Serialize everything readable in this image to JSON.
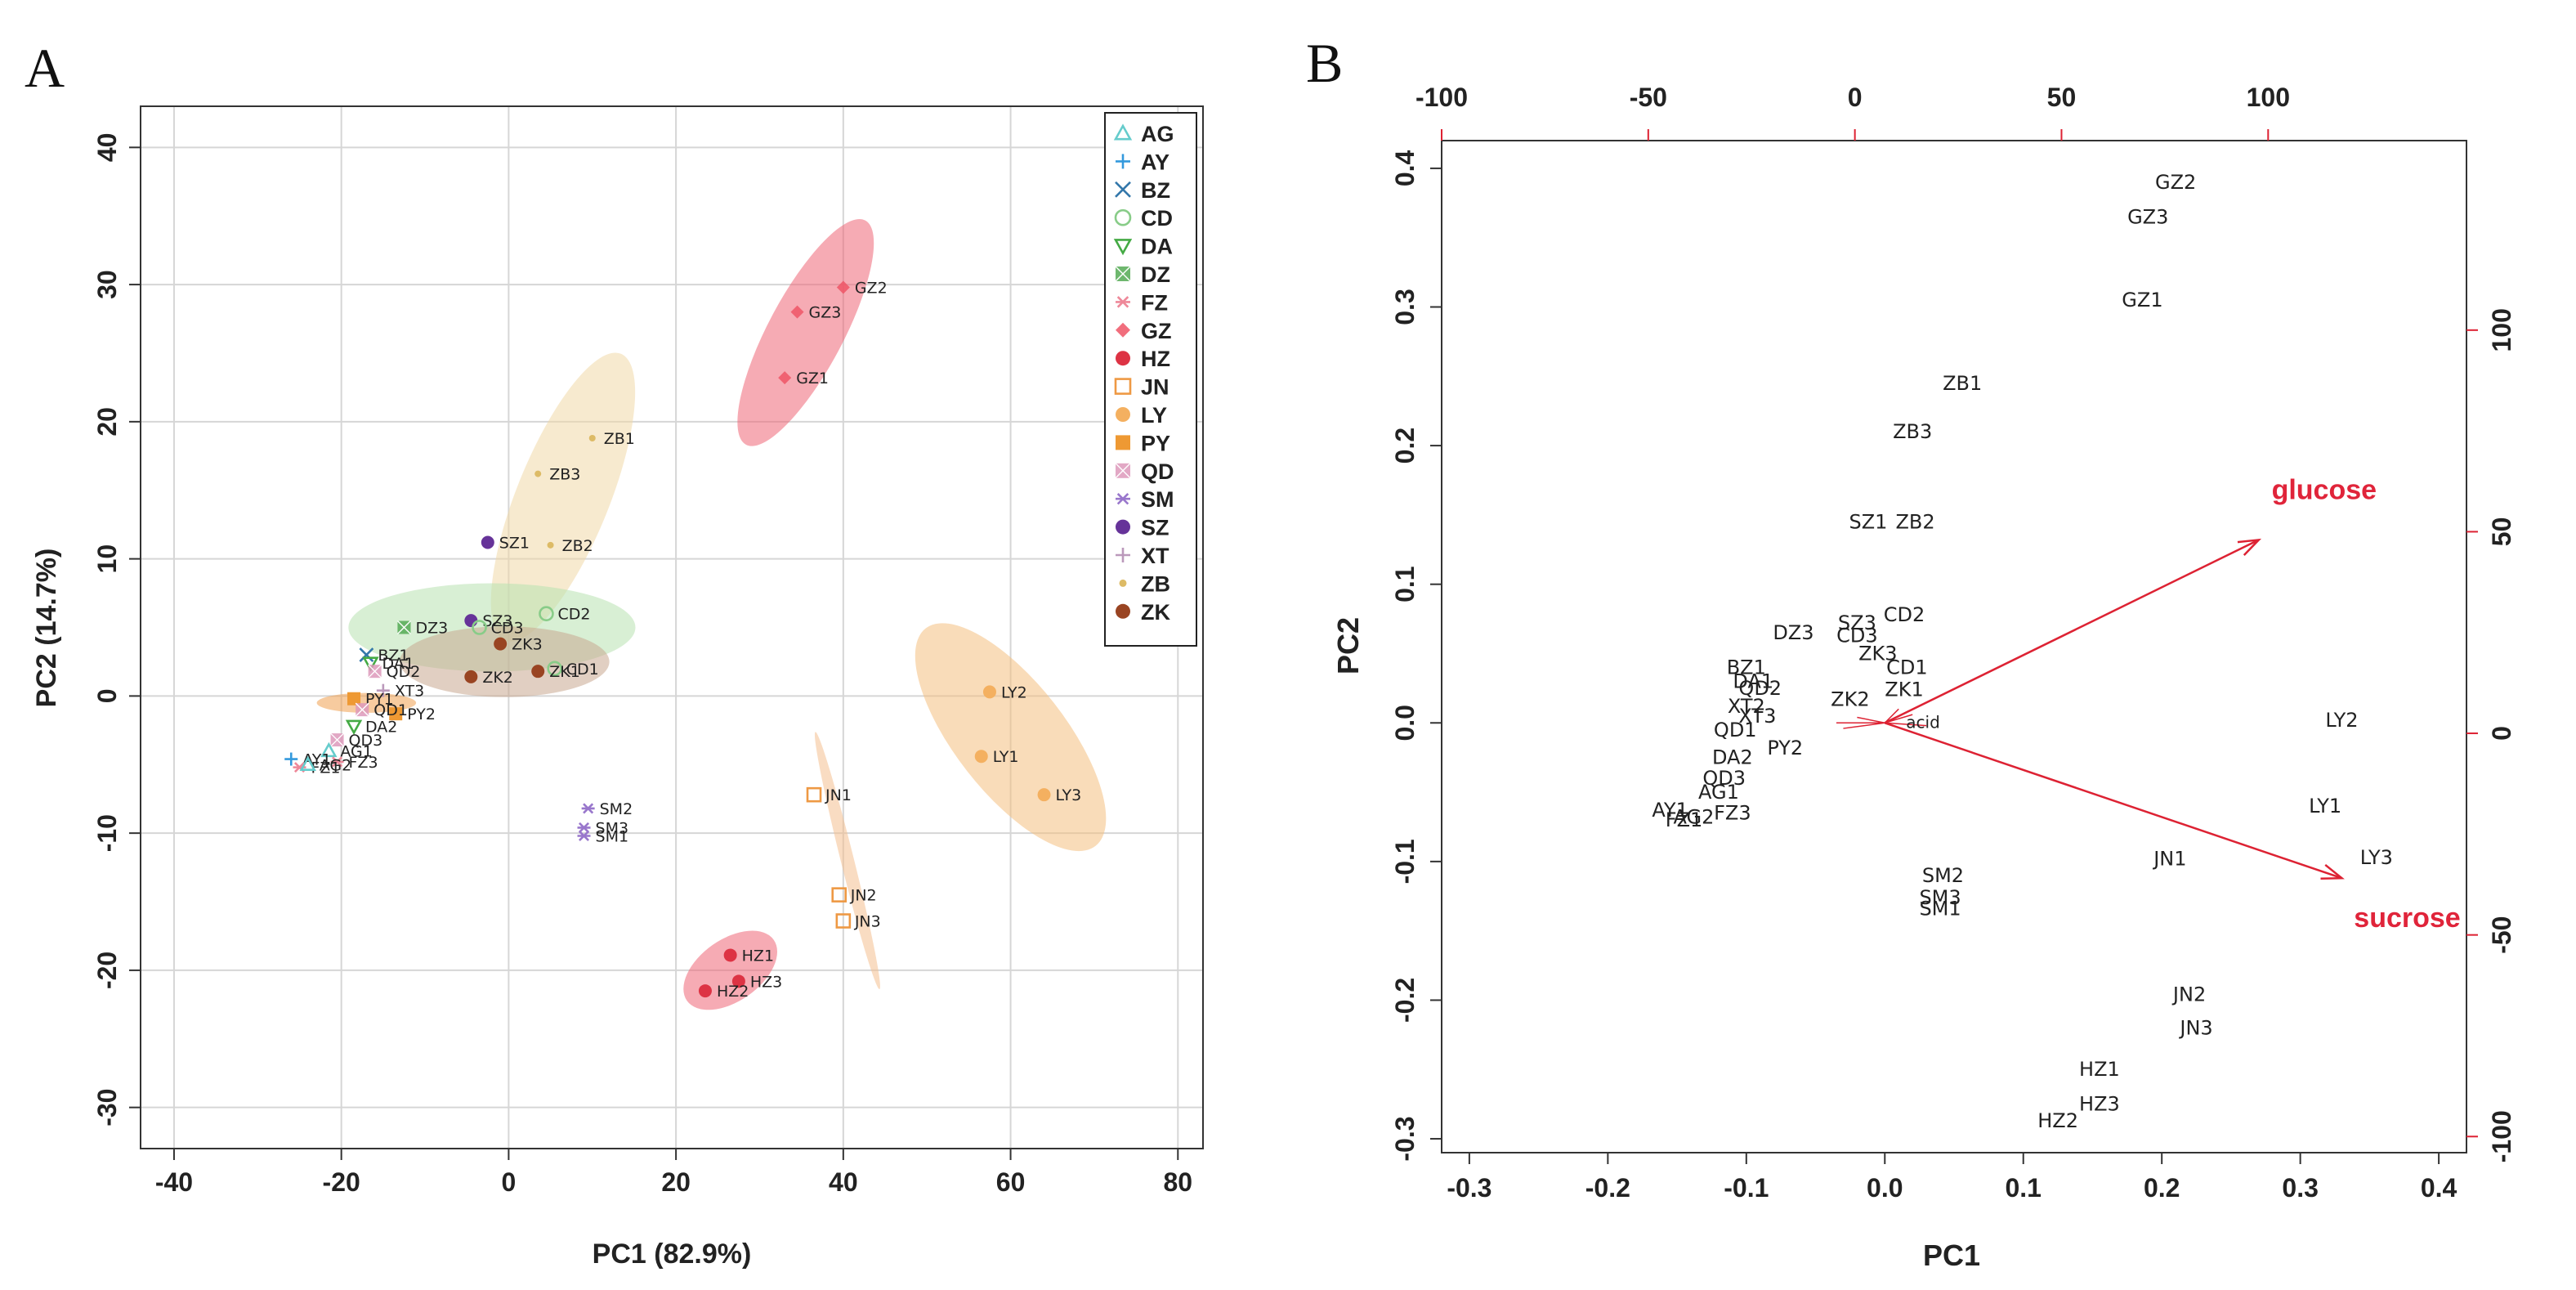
{
  "panels": {
    "a": {
      "letter": "A"
    },
    "b": {
      "letter": "B"
    }
  },
  "legend_items": [
    {
      "key": "AG",
      "symbol": "triangle",
      "color": "#66cccc"
    },
    {
      "key": "AY",
      "symbol": "plus",
      "color": "#3399dd"
    },
    {
      "key": "BZ",
      "symbol": "x",
      "color": "#3377aa"
    },
    {
      "key": "CD",
      "symbol": "circle-open",
      "color": "#88cc88"
    },
    {
      "key": "DA",
      "symbol": "triangle-down",
      "color": "#44aa44"
    },
    {
      "key": "DZ",
      "symbol": "square-x",
      "color": "#55aa55"
    },
    {
      "key": "FZ",
      "symbol": "asterisk",
      "color": "#ee8899"
    },
    {
      "key": "GZ",
      "symbol": "diamond",
      "color": "#ee5566"
    },
    {
      "key": "HZ",
      "symbol": "circle-filled",
      "color": "#dd3344"
    },
    {
      "key": "JN",
      "symbol": "square-open",
      "color": "#ee9944"
    },
    {
      "key": "LY",
      "symbol": "circle-filled",
      "color": "#f4b060"
    },
    {
      "key": "PY",
      "symbol": "square-filled",
      "color": "#ee9933"
    },
    {
      "key": "QD",
      "symbol": "square-x",
      "color": "#dd99bb"
    },
    {
      "key": "SM",
      "symbol": "asterisk",
      "color": "#9977cc"
    },
    {
      "key": "SZ",
      "symbol": "circle-filled",
      "color": "#663399"
    },
    {
      "key": "XT",
      "symbol": "plus",
      "color": "#bb99bb"
    },
    {
      "key": "ZB",
      "symbol": "dot",
      "color": "#ddbb66"
    },
    {
      "key": "ZK",
      "symbol": "circle-filled",
      "color": "#994422"
    }
  ],
  "chart_data": [
    {
      "type": "scatter",
      "title": "",
      "xlabel": "PC1 (82.9%)",
      "ylabel": "PC2 (14.7%)",
      "xlim": [
        -44,
        83
      ],
      "ylim": [
        -33,
        43
      ],
      "xticks": [
        -40,
        -20,
        0,
        20,
        40,
        60,
        80
      ],
      "yticks": [
        -30,
        -20,
        -10,
        0,
        10,
        20,
        30,
        40
      ],
      "grid": true,
      "legend": "top-right",
      "ellipses": [
        {
          "group": "GZ",
          "cx": 35.5,
          "cy": 26.5,
          "rx": 11.5,
          "ry": 3.4,
          "angle_deg": 62,
          "color": "#ee6677"
        },
        {
          "group": "ZB",
          "cx": 6.5,
          "cy": 14.5,
          "rx": 14.0,
          "ry": 4.2,
          "angle_deg": 68,
          "color": "#f0d8a8"
        },
        {
          "group": "LY",
          "cx": 60.0,
          "cy": -3.0,
          "rx": 12.5,
          "ry": 5.0,
          "angle_deg": -52,
          "color": "#f4c080"
        },
        {
          "group": "HZ",
          "cx": 26.5,
          "cy": -20.0,
          "rx": 4.8,
          "ry": 2.8,
          "angle_deg": 35,
          "color": "#ee6677"
        },
        {
          "group": "CD",
          "cx": -2.0,
          "cy": 5.0,
          "rx": 13.0,
          "ry": 4.0,
          "angle_deg": 0,
          "color": "#b8e2b0"
        },
        {
          "group": "ZK",
          "cx": -0.5,
          "cy": 2.5,
          "rx": 9.5,
          "ry": 3.2,
          "angle_deg": 0,
          "color": "#c8a890"
        },
        {
          "group": "JN",
          "cx": 40.5,
          "cy": -12.0,
          "rx": 12.0,
          "ry": 0.6,
          "angle_deg": -76,
          "color": "#f4c090"
        },
        {
          "group": "PY",
          "cx": -17.0,
          "cy": -0.5,
          "rx": 4.5,
          "ry": 0.9,
          "angle_deg": 0,
          "color": "#f0a050"
        }
      ],
      "points": [
        {
          "label": "GZ2",
          "group": "GZ",
          "x": 40.0,
          "y": 29.8
        },
        {
          "label": "GZ3",
          "group": "GZ",
          "x": 34.5,
          "y": 28.0
        },
        {
          "label": "GZ1",
          "group": "GZ",
          "x": 33.0,
          "y": 23.2
        },
        {
          "label": "ZB1",
          "group": "ZB",
          "x": 10.0,
          "y": 18.8
        },
        {
          "label": "ZB3",
          "group": "ZB",
          "x": 3.5,
          "y": 16.2
        },
        {
          "label": "ZB2",
          "group": "ZB",
          "x": 5.0,
          "y": 11.0
        },
        {
          "label": "SZ1",
          "group": "SZ",
          "x": -2.5,
          "y": 11.2
        },
        {
          "label": "CD2",
          "group": "CD",
          "x": 4.5,
          "y": 6.0
        },
        {
          "label": "CD1",
          "group": "CD",
          "x": 5.5,
          "y": 2.0
        },
        {
          "label": "DZ3",
          "group": "DZ",
          "x": -12.5,
          "y": 5.0
        },
        {
          "label": "SZ3",
          "group": "SZ",
          "x": -4.5,
          "y": 5.5
        },
        {
          "label": "CD3",
          "group": "CD",
          "x": -3.5,
          "y": 5.0
        },
        {
          "label": "ZK3",
          "group": "ZK",
          "x": -1.0,
          "y": 3.8
        },
        {
          "label": "ZK1",
          "group": "ZK",
          "x": 3.5,
          "y": 1.8
        },
        {
          "label": "ZK2",
          "group": "ZK",
          "x": -4.5,
          "y": 1.4
        },
        {
          "label": "LY2",
          "group": "LY",
          "x": 57.5,
          "y": 0.3
        },
        {
          "label": "LY1",
          "group": "LY",
          "x": 56.5,
          "y": -4.4
        },
        {
          "label": "LY3",
          "group": "LY",
          "x": 64.0,
          "y": -7.2
        },
        {
          "label": "JN1",
          "group": "JN",
          "x": 36.5,
          "y": -7.2
        },
        {
          "label": "JN2",
          "group": "JN",
          "x": 39.5,
          "y": -14.5
        },
        {
          "label": "JN3",
          "group": "JN",
          "x": 40.0,
          "y": -16.4
        },
        {
          "label": "SM2",
          "group": "SM",
          "x": 9.5,
          "y": -8.2
        },
        {
          "label": "SM3",
          "group": "SM",
          "x": 9.0,
          "y": -9.6
        },
        {
          "label": "SM1",
          "group": "SM",
          "x": 9.0,
          "y": -10.2
        },
        {
          "label": "HZ1",
          "group": "HZ",
          "x": 26.5,
          "y": -18.9
        },
        {
          "label": "HZ3",
          "group": "HZ",
          "x": 27.5,
          "y": -20.8
        },
        {
          "label": "HZ2",
          "group": "HZ",
          "x": 23.5,
          "y": -21.5
        },
        {
          "label": "PY2",
          "group": "PY",
          "x": -13.5,
          "y": -1.3
        },
        {
          "label": "BZ1",
          "group": "BZ",
          "x": -17.0,
          "y": 3.0
        },
        {
          "label": "DA1",
          "group": "DA",
          "x": -16.5,
          "y": 2.4
        },
        {
          "label": "QD2",
          "group": "QD",
          "x": -16.0,
          "y": 1.8
        },
        {
          "label": "XT3",
          "group": "XT",
          "x": -15.0,
          "y": 0.4
        },
        {
          "label": "PY1",
          "group": "PY",
          "x": -18.5,
          "y": -0.2
        },
        {
          "label": "QD1",
          "group": "QD",
          "x": -17.5,
          "y": -1.0
        },
        {
          "label": "DA2",
          "group": "DA",
          "x": -18.5,
          "y": -2.2
        },
        {
          "label": "QD3",
          "group": "QD",
          "x": -20.5,
          "y": -3.2
        },
        {
          "label": "AG1",
          "group": "AG",
          "x": -21.5,
          "y": -4.0
        },
        {
          "label": "FZ3",
          "group": "FZ",
          "x": -20.5,
          "y": -4.8
        },
        {
          "label": "AY1",
          "group": "AY",
          "x": -26.0,
          "y": -4.6
        },
        {
          "label": "FZ1",
          "group": "FZ",
          "x": -25.0,
          "y": -5.2
        },
        {
          "label": "AG2",
          "group": "AG",
          "x": -24.0,
          "y": -5.0
        }
      ]
    },
    {
      "type": "scatter",
      "subtype": "biplot",
      "title": "",
      "xlabel": "PC1",
      "ylabel": "PC2",
      "xlim": [
        -0.32,
        0.42
      ],
      "ylim": [
        -0.31,
        0.42
      ],
      "xticks": [
        -0.3,
        -0.2,
        -0.1,
        0.0,
        0.1,
        0.2,
        0.3,
        0.4
      ],
      "yticks": [
        -0.3,
        -0.2,
        -0.1,
        0.0,
        0.1,
        0.2,
        0.3,
        0.4
      ],
      "top_axis": {
        "ticks": [
          -100,
          -50,
          0,
          50,
          100
        ],
        "lim": [
          -100,
          148
        ],
        "color": "#dd2233"
      },
      "right_axis": {
        "ticks": [
          -100,
          -50,
          0,
          50,
          100
        ],
        "lim": [
          -104,
          147
        ],
        "color": "#dd2233"
      },
      "grid": false,
      "loadings": [
        {
          "label": "glucose",
          "x": 0.27,
          "y": 0.132
        },
        {
          "label": "sucrose",
          "x": 0.33,
          "y": -0.112
        }
      ],
      "minor_loadings_label": "acid",
      "points": [
        {
          "label": "GZ2",
          "x": 0.21,
          "y": 0.39
        },
        {
          "label": "GZ3",
          "x": 0.19,
          "y": 0.365
        },
        {
          "label": "GZ1",
          "x": 0.186,
          "y": 0.305
        },
        {
          "label": "ZB1",
          "x": 0.056,
          "y": 0.245
        },
        {
          "label": "ZB3",
          "x": 0.02,
          "y": 0.21
        },
        {
          "label": "SZ1",
          "x": -0.012,
          "y": 0.145
        },
        {
          "label": "ZB2",
          "x": 0.022,
          "y": 0.145
        },
        {
          "label": "CD2",
          "x": 0.014,
          "y": 0.078
        },
        {
          "label": "DZ3",
          "x": -0.066,
          "y": 0.065
        },
        {
          "label": "SZ3",
          "x": -0.02,
          "y": 0.072
        },
        {
          "label": "CD3",
          "x": -0.02,
          "y": 0.063
        },
        {
          "label": "ZK3",
          "x": -0.005,
          "y": 0.05
        },
        {
          "label": "CD1",
          "x": 0.016,
          "y": 0.04
        },
        {
          "label": "ZK1",
          "x": 0.014,
          "y": 0.024
        },
        {
          "label": "ZK2",
          "x": -0.025,
          "y": 0.017
        },
        {
          "label": "LY2",
          "x": 0.33,
          "y": 0.002
        },
        {
          "label": "LY1",
          "x": 0.318,
          "y": -0.06
        },
        {
          "label": "LY3",
          "x": 0.355,
          "y": -0.097
        },
        {
          "label": "JN1",
          "x": 0.206,
          "y": -0.098
        },
        {
          "label": "SM2",
          "x": 0.042,
          "y": -0.11
        },
        {
          "label": "SM3",
          "x": 0.04,
          "y": -0.126
        },
        {
          "label": "SM1",
          "x": 0.04,
          "y": -0.134
        },
        {
          "label": "JN2",
          "x": 0.22,
          "y": -0.196
        },
        {
          "label": "JN3",
          "x": 0.225,
          "y": -0.22
        },
        {
          "label": "HZ1",
          "x": 0.155,
          "y": -0.25
        },
        {
          "label": "HZ3",
          "x": 0.155,
          "y": -0.275
        },
        {
          "label": "HZ2",
          "x": 0.125,
          "y": -0.287
        },
        {
          "label": "BZ1",
          "x": -0.1,
          "y": 0.04
        },
        {
          "label": "DA1",
          "x": -0.095,
          "y": 0.03
        },
        {
          "label": "QD2",
          "x": -0.09,
          "y": 0.025
        },
        {
          "label": "XT2",
          "x": -0.1,
          "y": 0.012
        },
        {
          "label": "XT3",
          "x": -0.092,
          "y": 0.005
        },
        {
          "label": "QD1",
          "x": -0.108,
          "y": -0.005
        },
        {
          "label": "PY2",
          "x": -0.072,
          "y": -0.018
        },
        {
          "label": "DA2",
          "x": -0.11,
          "y": -0.025
        },
        {
          "label": "QD3",
          "x": -0.116,
          "y": -0.04
        },
        {
          "label": "AG1",
          "x": -0.12,
          "y": -0.05
        },
        {
          "label": "FZ3",
          "x": -0.11,
          "y": -0.065
        },
        {
          "label": "AY1",
          "x": -0.155,
          "y": -0.063
        },
        {
          "label": "FZ1",
          "x": -0.145,
          "y": -0.07
        },
        {
          "label": "AG2",
          "x": -0.138,
          "y": -0.068
        }
      ]
    }
  ]
}
